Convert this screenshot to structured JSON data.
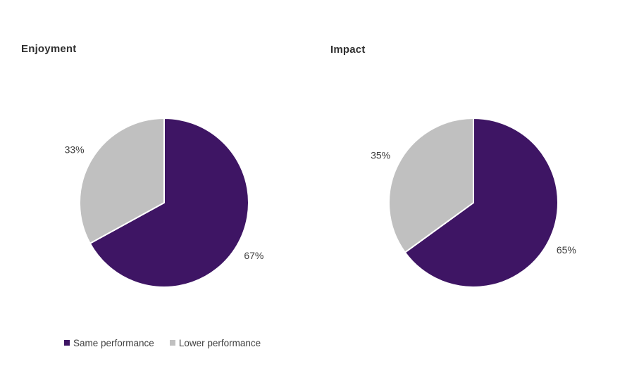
{
  "page": {
    "background": "#ffffff"
  },
  "colors": {
    "primary": "#3E1564",
    "secondary": "#C0C0C0",
    "title_text": "#303030",
    "label_text": "#404040",
    "slice_separator": "#ffffff"
  },
  "legend": {
    "position": "bottom-left",
    "items": [
      {
        "label": "Same performance",
        "color": "#3E1564"
      },
      {
        "label": "Lower performance",
        "color": "#C0C0C0"
      }
    ]
  },
  "chart_data": [
    {
      "type": "pie",
      "title": "Enjoyment",
      "categories": [
        "Same performance",
        "Lower performance"
      ],
      "values": [
        67,
        33
      ],
      "value_labels": [
        "67%",
        "33%"
      ],
      "colors": [
        "#3E1564",
        "#C0C0C0"
      ],
      "start_angle_deg": 0,
      "direction": "clockwise",
      "data_labels": "outside",
      "legend_position": "bottom-left"
    },
    {
      "type": "pie",
      "title": "Impact",
      "categories": [
        "Same performance",
        "Lower performance"
      ],
      "values": [
        65,
        35
      ],
      "value_labels": [
        "65%",
        "35%"
      ],
      "colors": [
        "#3E1564",
        "#C0C0C0"
      ],
      "start_angle_deg": 0,
      "direction": "clockwise",
      "data_labels": "outside",
      "legend_position": "none"
    }
  ]
}
